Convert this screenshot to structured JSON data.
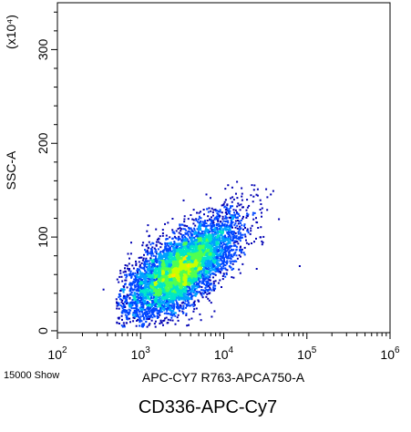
{
  "chart_data": {
    "type": "scatter",
    "plot_style": "density dot plot (pseudocolor)",
    "x_axis": {
      "label": "APC-CY7 R763-APCA750-A",
      "scale": "log",
      "range": [
        100,
        1000000
      ],
      "ticks": [
        {
          "base": "10",
          "exp": "2",
          "value": 100
        },
        {
          "base": "10",
          "exp": "3",
          "value": 1000
        },
        {
          "base": "10",
          "exp": "4",
          "value": 10000
        },
        {
          "base": "10",
          "exp": "5",
          "value": 100000
        },
        {
          "base": "10",
          "exp": "6",
          "value": 1000000
        }
      ]
    },
    "y_axis": {
      "label": "SSC-A",
      "scale": "linear",
      "unit_label": "(x10⁴)",
      "range": [
        -2,
        350
      ],
      "ticks": [
        0,
        100,
        200,
        300
      ]
    },
    "events_label": "15000 Show",
    "population": {
      "center_x": 3000,
      "center_y": 65,
      "x_range": [
        500,
        40000
      ],
      "y_range": [
        5,
        160
      ],
      "event_count": 15000
    },
    "density_colors": [
      "#0000b4",
      "#0046ff",
      "#00a0ff",
      "#00e6c8",
      "#50ff50",
      "#c8ff00",
      "#ffe600"
    ],
    "grid": false,
    "legend": "none"
  },
  "caption": "CD336-APC-Cy7"
}
